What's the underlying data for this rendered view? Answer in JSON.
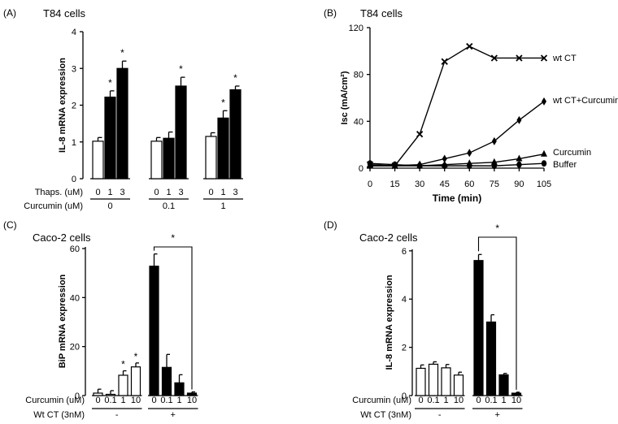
{
  "panels": {
    "A": {
      "label": "(A)",
      "title": "T84 cells",
      "row1_label": "Thaps. (uM)",
      "row2_label": "Curcumin (uM)"
    },
    "B": {
      "label": "(B)",
      "title": "T84 cells"
    },
    "C": {
      "label": "(C)",
      "title": "Caco-2 cells",
      "row1_label": "Curcumin (uM)",
      "row2_label": "Wt CT (3nM)",
      "star": "*"
    },
    "D": {
      "label": "(D)",
      "title": "Caco-2 cells",
      "row1_label": "Curcumin (uM)",
      "row2_label": "Wt CT (3nM)",
      "star": "*"
    }
  },
  "chart_data": [
    {
      "panel": "A",
      "type": "bar",
      "title": "T84 cells",
      "ylabel": "IL-8   mRNA  expression",
      "ylim": [
        0,
        4
      ],
      "yticks": [
        0,
        1,
        2,
        3,
        4
      ],
      "groups": [
        {
          "curcumin": "0",
          "bars": [
            {
              "thaps": "0",
              "value": 1.02,
              "err": 0.1,
              "fill": "white",
              "star": ""
            },
            {
              "thaps": "1",
              "value": 2.22,
              "err": 0.17,
              "fill": "black",
              "star": "*"
            },
            {
              "thaps": "3",
              "value": 3.0,
              "err": 0.2,
              "fill": "black",
              "star": "*"
            }
          ]
        },
        {
          "curcumin": "0.1",
          "bars": [
            {
              "thaps": "0",
              "value": 1.02,
              "err": 0.1,
              "fill": "white",
              "star": ""
            },
            {
              "thaps": "1",
              "value": 1.1,
              "err": 0.17,
              "fill": "black",
              "star": ""
            },
            {
              "thaps": "3",
              "value": 2.52,
              "err": 0.24,
              "fill": "black",
              "star": "*"
            }
          ]
        },
        {
          "curcumin": "1",
          "bars": [
            {
              "thaps": "0",
              "value": 1.15,
              "err": 0.1,
              "fill": "white",
              "star": ""
            },
            {
              "thaps": "1",
              "value": 1.65,
              "err": 0.2,
              "fill": "black",
              "star": "*"
            },
            {
              "thaps": "3",
              "value": 2.42,
              "err": 0.1,
              "fill": "black",
              "star": "*"
            }
          ]
        }
      ]
    },
    {
      "panel": "B",
      "type": "line",
      "title": "T84 cells",
      "xlabel": "Time (min)",
      "ylabel": "Isc (mA/cm²)",
      "xlim": [
        0,
        105
      ],
      "ylim": [
        0,
        120
      ],
      "xticks": [
        0,
        15,
        30,
        45,
        60,
        75,
        90,
        105
      ],
      "yticks": [
        0,
        40,
        80,
        120
      ],
      "x": [
        0,
        15,
        30,
        45,
        60,
        75,
        90,
        105
      ],
      "series": [
        {
          "name": "wt CT",
          "marker": "x",
          "values": [
            3,
            2,
            29,
            91,
            104,
            94,
            94,
            94
          ]
        },
        {
          "name": "wt CT+Curcumin",
          "marker": "diamond",
          "values": [
            2,
            2,
            3,
            8,
            13,
            23,
            41,
            57
          ]
        },
        {
          "name": "Curcumin",
          "marker": "triangle",
          "values": [
            2,
            2,
            2,
            3,
            4,
            5,
            8,
            12
          ]
        },
        {
          "name": "Buffer",
          "marker": "circle",
          "values": [
            4,
            3,
            2,
            2,
            2,
            2,
            3,
            4
          ]
        }
      ]
    },
    {
      "panel": "C",
      "type": "bar",
      "title": "Caco-2 cells",
      "ylabel": "BiP   mRNA  expression",
      "ylim": [
        0,
        60
      ],
      "yticks": [
        0,
        20,
        40,
        60
      ],
      "groups": [
        {
          "wtct": "-",
          "bars": [
            {
              "curcumin": "0",
              "value": 1.0,
              "err": 1.6,
              "fill": "white",
              "star": ""
            },
            {
              "curcumin": "0.1",
              "value": 0.5,
              "err": 1.5,
              "fill": "white",
              "star": ""
            },
            {
              "curcumin": "1",
              "value": 8.3,
              "err": 1.8,
              "fill": "white",
              "star": "*"
            },
            {
              "curcumin": "10",
              "value": 11.7,
              "err": 1.6,
              "fill": "white",
              "star": "*"
            }
          ]
        },
        {
          "wtct": "+",
          "bars": [
            {
              "curcumin": "0",
              "value": 52.8,
              "err": 5.0,
              "fill": "black",
              "star": ""
            },
            {
              "curcumin": "0.1",
              "value": 11.5,
              "err": 5.3,
              "fill": "black",
              "star": ""
            },
            {
              "curcumin": "1",
              "value": 5.2,
              "err": 3.3,
              "fill": "black",
              "star": ""
            },
            {
              "curcumin": "10",
              "value": 1.0,
              "err": 0.5,
              "fill": "black",
              "star": ""
            }
          ]
        }
      ]
    },
    {
      "panel": "D",
      "type": "bar",
      "title": "Caco-2 cells",
      "ylabel": "IL-8 mRNA expression",
      "ylim": [
        0,
        6.5
      ],
      "yticks": [
        0,
        2,
        4,
        6
      ],
      "groups": [
        {
          "wtct": "-",
          "bars": [
            {
              "curcumin": "0",
              "value": 1.13,
              "err": 0.14,
              "fill": "white",
              "star": ""
            },
            {
              "curcumin": "0.1",
              "value": 1.3,
              "err": 0.1,
              "fill": "white",
              "star": ""
            },
            {
              "curcumin": "1",
              "value": 1.15,
              "err": 0.14,
              "fill": "white",
              "star": ""
            },
            {
              "curcumin": "10",
              "value": 0.85,
              "err": 0.12,
              "fill": "white",
              "star": ""
            }
          ]
        },
        {
          "wtct": "+",
          "bars": [
            {
              "curcumin": "0",
              "value": 5.6,
              "err": 0.25,
              "fill": "black",
              "star": ""
            },
            {
              "curcumin": "0.1",
              "value": 3.05,
              "err": 0.3,
              "fill": "black",
              "star": ""
            },
            {
              "curcumin": "1",
              "value": 0.86,
              "err": 0.06,
              "fill": "black",
              "star": ""
            },
            {
              "curcumin": "10",
              "value": 0.1,
              "err": 0.04,
              "fill": "black",
              "star": ""
            }
          ]
        }
      ]
    }
  ]
}
